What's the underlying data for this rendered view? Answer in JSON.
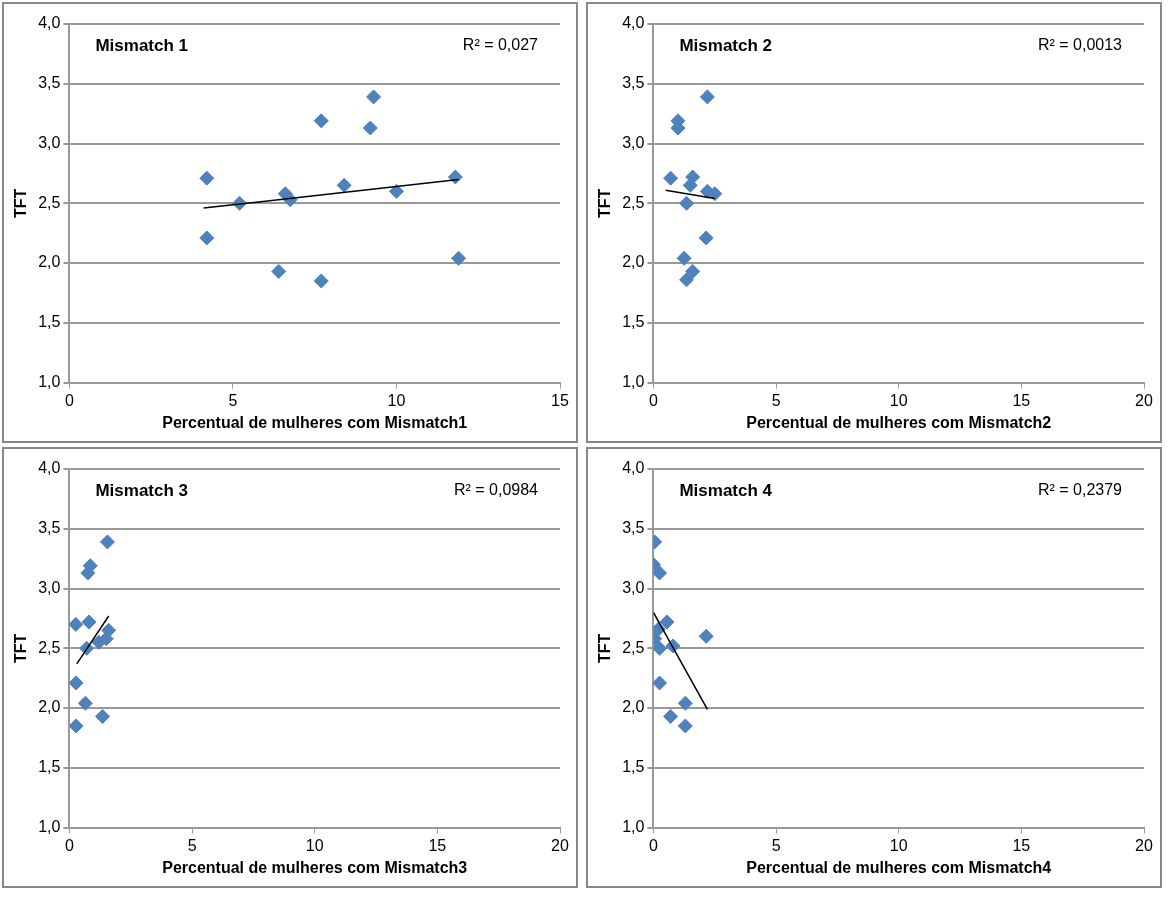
{
  "chart_data": [
    {
      "type": "scatter",
      "title": "Mismatch 1",
      "xlabel": "Percentual de mulheres com Mismatch1",
      "ylabel": "TFT",
      "annotations": [
        "R² = 0,027"
      ],
      "xlim": [
        0,
        15
      ],
      "xticks": [
        0,
        5,
        10,
        15
      ],
      "ylim": [
        1,
        4
      ],
      "yticks": [
        {
          "value": 1,
          "label": "1,0"
        },
        {
          "value": 1.5,
          "label": "1,5"
        },
        {
          "value": 2,
          "label": "2,0"
        },
        {
          "value": 2.5,
          "label": "2,5"
        },
        {
          "value": 3,
          "label": "3,0"
        },
        {
          "value": 3.5,
          "label": "3,5"
        },
        {
          "value": 4,
          "label": "4,0"
        }
      ],
      "grid": "y",
      "legend": false,
      "series": [
        {
          "color": "#4f81bd",
          "marker": "diamond",
          "x": [
            4.2,
            4.2,
            5.2,
            6.4,
            6.6,
            6.75,
            7.7,
            7.7,
            8.4,
            9.2,
            9.3,
            10.0,
            11.8,
            11.9
          ],
          "values": [
            2.71,
            2.21,
            2.5,
            1.93,
            2.58,
            2.53,
            3.19,
            1.85,
            2.65,
            3.13,
            3.39,
            2.6,
            2.72,
            2.04
          ]
        },
        {
          "type": "line",
          "color": "#000000",
          "marker": "none",
          "x": [
            4.1,
            11.9
          ],
          "values": [
            2.46,
            2.7
          ]
        }
      ]
    },
    {
      "type": "scatter",
      "title": "Mismatch 2",
      "xlabel": "Percentual de mulheres com Mismatch2",
      "ylabel": "TFT",
      "annotations": [
        "R² = 0,0013"
      ],
      "xlim": [
        0,
        20
      ],
      "xticks": [
        0,
        5,
        10,
        15,
        20
      ],
      "ylim": [
        1,
        4
      ],
      "yticks": [
        {
          "value": 1,
          "label": "1,0"
        },
        {
          "value": 1.5,
          "label": "1,5"
        },
        {
          "value": 2,
          "label": "2,0"
        },
        {
          "value": 2.5,
          "label": "2,5"
        },
        {
          "value": 3,
          "label": "3,0"
        },
        {
          "value": 3.5,
          "label": "3,5"
        },
        {
          "value": 4,
          "label": "4,0"
        }
      ],
      "grid": "y",
      "legend": false,
      "series": [
        {
          "color": "#4f81bd",
          "marker": "diamond",
          "x": [
            0.7,
            1.0,
            1.0,
            1.6,
            1.5,
            1.35,
            2.2,
            2.5,
            2.2,
            2.15,
            1.25,
            1.6,
            1.35
          ],
          "values": [
            2.71,
            3.19,
            3.13,
            2.72,
            2.65,
            2.5,
            2.6,
            2.58,
            3.39,
            2.21,
            2.04,
            1.93,
            1.86
          ]
        },
        {
          "type": "line",
          "color": "#000000",
          "marker": "none",
          "x": [
            0.5,
            2.5
          ],
          "values": [
            2.61,
            2.54
          ]
        }
      ]
    },
    {
      "type": "scatter",
      "title": "Mismatch 3",
      "xlabel": "Percentual de mulheres com Mismatch3",
      "ylabel": "TFT",
      "annotations": [
        "R² = 0,0984"
      ],
      "xlim": [
        0,
        20
      ],
      "xticks": [
        0,
        5,
        10,
        15,
        20
      ],
      "ylim": [
        1,
        4
      ],
      "yticks": [
        {
          "value": 1,
          "label": "1,0"
        },
        {
          "value": 1.5,
          "label": "1,5"
        },
        {
          "value": 2,
          "label": "2,0"
        },
        {
          "value": 2.5,
          "label": "2,5"
        },
        {
          "value": 3,
          "label": "3,0"
        },
        {
          "value": 3.5,
          "label": "3,5"
        },
        {
          "value": 4,
          "label": "4,0"
        }
      ],
      "grid": "y",
      "legend": false,
      "series": [
        {
          "color": "#4f81bd",
          "marker": "diamond",
          "x": [
            0.26,
            0.85,
            0.75,
            1.55,
            0.8,
            1.6,
            1.5,
            1.2,
            0.7,
            0.27,
            0.65,
            1.35,
            0.27
          ],
          "values": [
            2.7,
            3.19,
            3.13,
            3.39,
            2.72,
            2.65,
            2.58,
            2.55,
            2.5,
            2.21,
            2.04,
            1.93,
            1.85
          ]
        },
        {
          "type": "line",
          "color": "#000000",
          "marker": "none",
          "x": [
            0.3,
            1.6
          ],
          "values": [
            2.37,
            2.77
          ]
        }
      ]
    },
    {
      "type": "scatter",
      "title": "Mismatch 4",
      "xlabel": "Percentual de mulheres com Mismatch4",
      "ylabel": "TFT",
      "annotations": [
        "R² = 0,2379"
      ],
      "xlim": [
        0,
        20
      ],
      "xticks": [
        0,
        5,
        10,
        15,
        20
      ],
      "ylim": [
        1,
        4
      ],
      "yticks": [
        {
          "value": 1,
          "label": "1,0"
        },
        {
          "value": 1.5,
          "label": "1,5"
        },
        {
          "value": 2,
          "label": "2,0"
        },
        {
          "value": 2.5,
          "label": "2,5"
        },
        {
          "value": 3,
          "label": "3,0"
        },
        {
          "value": 3.5,
          "label": "3,5"
        },
        {
          "value": 4,
          "label": "4,0"
        }
      ],
      "grid": "y",
      "legend": false,
      "series": [
        {
          "color": "#4f81bd",
          "marker": "diamond",
          "x": [
            0.05,
            0.0,
            0.25,
            0.55,
            0.05,
            0.2,
            0.25,
            0.8,
            2.15,
            0.25,
            1.3,
            0.7,
            1.3
          ],
          "values": [
            3.39,
            3.2,
            3.13,
            2.72,
            2.58,
            2.66,
            2.5,
            2.52,
            2.6,
            2.21,
            2.04,
            1.93,
            1.85
          ]
        },
        {
          "type": "line",
          "color": "#000000",
          "marker": "none",
          "x": [
            0.0,
            2.2
          ],
          "values": [
            2.8,
            1.99
          ]
        }
      ]
    }
  ]
}
